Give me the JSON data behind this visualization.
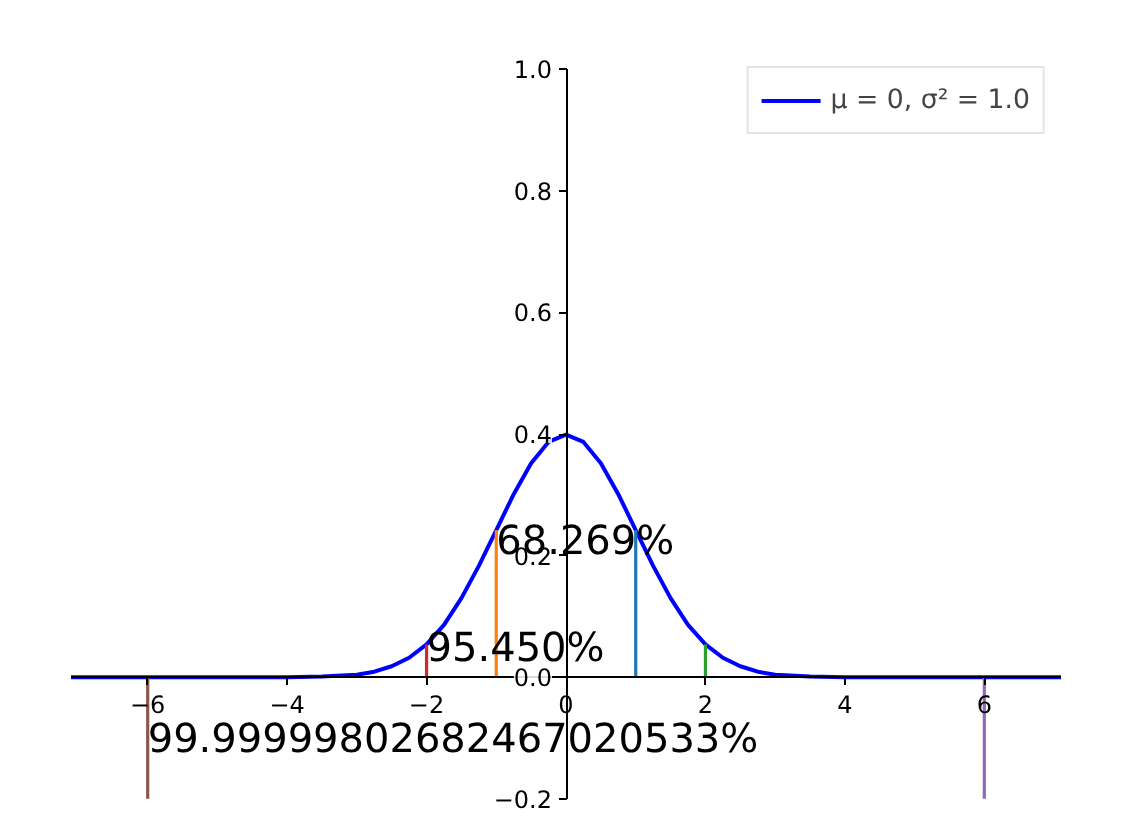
{
  "chart_data": {
    "type": "line",
    "xlim": [
      -7.1,
      7.1
    ],
    "ylim": [
      -0.2,
      1.0
    ],
    "xticks": [
      {
        "value": -6,
        "label": "−6"
      },
      {
        "value": -4,
        "label": "−4"
      },
      {
        "value": -2,
        "label": "−2"
      },
      0,
      2,
      4,
      6
    ],
    "yticks": [
      {
        "value": -0.2,
        "label": "−0.2"
      },
      {
        "value": 0,
        "label": "0.0"
      },
      {
        "value": 0.2,
        "label": "0.2"
      },
      {
        "value": 0.4,
        "label": "0.4"
      },
      {
        "value": 0.6,
        "label": "0.6"
      },
      {
        "value": 0.8,
        "label": "0.8"
      },
      {
        "value": 1.0,
        "label": "1.0"
      }
    ],
    "grid": false,
    "legend": "top right",
    "series": [
      {
        "name": "μ = 0, σ² = 1.0",
        "color": "#0000ff",
        "x": [
          -7.1,
          -6,
          -5,
          -4,
          -3.5,
          -3,
          -2.75,
          -2.5,
          -2.25,
          -2,
          -1.75,
          -1.5,
          -1.25,
          -1,
          -0.75,
          -0.5,
          -0.25,
          0,
          0.25,
          0.5,
          0.75,
          1,
          1.25,
          1.5,
          1.75,
          2,
          2.25,
          2.5,
          2.75,
          3,
          3.5,
          4,
          5,
          6,
          7.1
        ],
        "values": [
          0,
          0,
          0,
          0,
          0.001,
          0.004,
          0.009,
          0.018,
          0.032,
          0.054,
          0.086,
          0.13,
          0.183,
          0.242,
          0.301,
          0.352,
          0.387,
          0.399,
          0.387,
          0.352,
          0.301,
          0.242,
          0.183,
          0.13,
          0.086,
          0.054,
          0.032,
          0.018,
          0.009,
          0.004,
          0.001,
          0,
          0,
          0,
          0
        ]
      },
      {
        "color": "#1f77b4",
        "x": [
          1,
          1
        ],
        "values": [
          0,
          0.242
        ]
      },
      {
        "color": "#ff7f0e",
        "x": [
          -1,
          -1
        ],
        "values": [
          0,
          0.242
        ]
      },
      {
        "color": "#2ca02c",
        "x": [
          2,
          2
        ],
        "values": [
          0,
          0.054
        ]
      },
      {
        "color": "#d62728",
        "x": [
          -2,
          -2
        ],
        "values": [
          0,
          0.054
        ]
      },
      {
        "color": "#9467bd",
        "x": [
          6,
          6
        ],
        "values": [
          0,
          -0.2
        ]
      },
      {
        "color": "#8c564b",
        "x": [
          -6,
          -6
        ],
        "values": [
          0,
          -0.2
        ]
      }
    ],
    "annotations": [
      {
        "text": "68.269%",
        "x": -1,
        "y": 0.225
      },
      {
        "text": "95.450%",
        "x": -2,
        "y": 0.05
      },
      {
        "text": "99.99999802682467020533%",
        "x": -6,
        "y": -0.1
      }
    ]
  }
}
